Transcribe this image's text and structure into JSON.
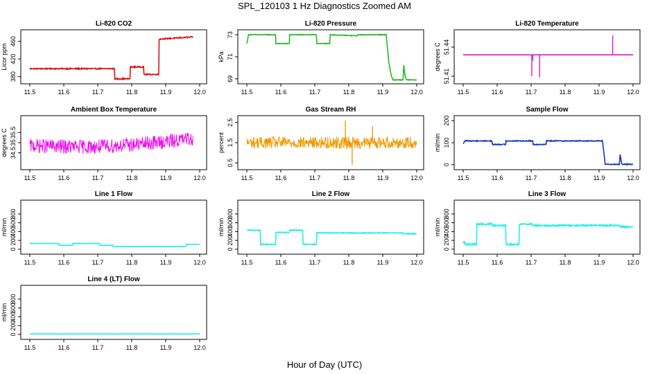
{
  "page": {
    "title": "SPL_120103  1 Hz Diagnostics Zoomed AM",
    "xlabel": "Hour of Day (UTC)"
  },
  "chart_data": [
    {
      "id": "co2",
      "type": "line",
      "title": "Li-820 CO2",
      "ylabel": "Licor ppm",
      "color": "#dd1111",
      "xlim": [
        11.5,
        12.0
      ],
      "xticks": [
        11.5,
        11.6,
        11.7,
        11.8,
        11.9,
        12.0
      ],
      "ylim": [
        370,
        480
      ],
      "yticks": [
        380,
        420,
        460
      ],
      "series": [
        {
          "name": "CO2",
          "noise": 1.2,
          "x": [
            11.5,
            11.75,
            11.75,
            11.795,
            11.795,
            11.835,
            11.835,
            11.88,
            11.88,
            11.98,
            11.98
          ],
          "y": [
            398,
            398,
            375,
            375,
            402,
            402,
            385,
            385,
            465,
            470,
            470
          ]
        }
      ],
      "spikes": []
    },
    {
      "id": "pressure",
      "type": "line",
      "title": "Li-820 Pressure",
      "ylabel": "kPa",
      "color": "#22bb22",
      "xlim": [
        11.5,
        12.0
      ],
      "xticks": [
        11.5,
        11.6,
        11.7,
        11.8,
        11.9,
        12.0
      ],
      "ylim": [
        68.8,
        73.2
      ],
      "yticks": [
        69,
        71,
        73
      ],
      "series": [
        {
          "name": "Pressure",
          "noise": 0.03,
          "x": [
            11.5,
            11.505,
            11.585,
            11.585,
            11.625,
            11.625,
            11.705,
            11.705,
            11.745,
            11.745,
            11.825,
            11.825,
            11.91,
            11.918,
            11.925,
            11.93,
            11.96,
            11.962,
            11.966,
            11.97,
            12.0
          ],
          "y": [
            72.2,
            73.0,
            73.0,
            72.2,
            72.2,
            73.0,
            73.0,
            72.2,
            72.2,
            73.0,
            72.9,
            73.0,
            73.0,
            70.5,
            69.3,
            68.9,
            68.9,
            70.3,
            69.2,
            68.9,
            68.9
          ]
        }
      ],
      "spikes": []
    },
    {
      "id": "temperature",
      "type": "line",
      "title": "Li-820 Temperature",
      "ylabel": "degrees C",
      "color": "#dd11dd",
      "xlim": [
        11.5,
        12.0
      ],
      "xticks": [
        11.5,
        11.6,
        11.7,
        11.8,
        11.9,
        12.0
      ],
      "ylim": [
        51.405,
        51.455
      ],
      "yticks": [
        51.41,
        51.44
      ],
      "series": [
        {
          "name": "Temperature",
          "noise": 0,
          "x": [
            11.5,
            12.0
          ],
          "y": [
            51.432,
            51.432
          ]
        }
      ],
      "spikes": [
        {
          "x": 11.702,
          "y": 51.41
        },
        {
          "x": 11.705,
          "y": 51.426
        },
        {
          "x": 11.725,
          "y": 51.409
        },
        {
          "x": 11.94,
          "y": 51.452
        }
      ]
    },
    {
      "id": "ambient",
      "type": "line",
      "title": "Ambient Box Temperature",
      "ylabel": "degrees C",
      "color": "#ee11ee",
      "xlim": [
        11.5,
        12.0
      ],
      "xticks": [
        11.5,
        11.6,
        11.7,
        11.8,
        11.9,
        12.0
      ],
      "ylim": [
        33.8,
        36.2
      ],
      "yticks": [
        34.5,
        35,
        35.5
      ],
      "series": [
        {
          "name": "Ambient",
          "noise": 0.35,
          "x": [
            11.5,
            11.6,
            11.7,
            11.8,
            11.9,
            11.98
          ],
          "y": [
            34.85,
            34.8,
            34.8,
            34.9,
            35.05,
            35.2
          ]
        }
      ],
      "spikes": []
    },
    {
      "id": "rh",
      "type": "line",
      "title": "Gas Stream RH",
      "ylabel": "percent",
      "color": "#ee9900",
      "xlim": [
        11.5,
        12.0
      ],
      "xticks": [
        11.5,
        11.6,
        11.7,
        11.8,
        11.9,
        12.0
      ],
      "ylim": [
        0.3,
        2.7
      ],
      "yticks": [
        0.5,
        1.5,
        2.5
      ],
      "series": [
        {
          "name": "RH",
          "noise": 0.3,
          "x": [
            11.5,
            12.0
          ],
          "y": [
            1.5,
            1.5
          ]
        }
      ],
      "spikes": [
        {
          "x": 11.79,
          "y": 2.6
        },
        {
          "x": 11.81,
          "y": 0.4
        },
        {
          "x": 11.87,
          "y": 2.3
        }
      ]
    },
    {
      "id": "sampleflow",
      "type": "line",
      "title": "Sample Flow",
      "ylabel": "ml/min",
      "color": "#1133cc",
      "xlim": [
        11.5,
        12.0
      ],
      "xticks": [
        11.5,
        11.6,
        11.7,
        11.8,
        11.9,
        12.0
      ],
      "ylim": [
        -10,
        210
      ],
      "yticks": [
        0,
        100,
        200
      ],
      "series": [
        {
          "name": "Sample Flow",
          "noise": 2,
          "x": [
            11.5,
            11.505,
            11.585,
            11.585,
            11.625,
            11.625,
            11.705,
            11.705,
            11.745,
            11.745,
            11.91,
            11.918,
            11.96,
            11.962,
            11.966,
            11.97,
            12.0
          ],
          "y": [
            95,
            108,
            108,
            92,
            92,
            108,
            108,
            92,
            92,
            108,
            108,
            2,
            2,
            50,
            5,
            2,
            2
          ]
        }
      ],
      "spikes": []
    },
    {
      "id": "line1",
      "type": "line",
      "title": "Line 1 Flow",
      "ylabel": "ml/min",
      "color": "#22eeee",
      "xlim": [
        11.5,
        12.0
      ],
      "xticks": [
        11.5,
        11.6,
        11.7,
        11.8,
        11.9,
        12.0
      ],
      "ylim": [
        -50,
        1050
      ],
      "yticks": [
        0,
        200,
        400,
        600,
        800
      ],
      "series": [
        {
          "name": "Line 1",
          "noise": 4,
          "x": [
            11.5,
            11.585,
            11.585,
            11.625,
            11.625,
            11.705,
            11.705,
            11.745,
            11.745,
            11.96,
            11.96,
            12.0
          ],
          "y": [
            130,
            130,
            90,
            90,
            130,
            130,
            90,
            90,
            60,
            60,
            110,
            110
          ]
        }
      ],
      "spikes": []
    },
    {
      "id": "line2",
      "type": "line",
      "title": "Line 2 Flow",
      "ylabel": "ml/min",
      "color": "#22eeee",
      "xlim": [
        11.5,
        12.0
      ],
      "xticks": [
        11.5,
        11.6,
        11.7,
        11.8,
        11.9,
        12.0
      ],
      "ylim": [
        -50,
        1050
      ],
      "yticks": [
        0,
        200,
        400,
        600,
        800
      ],
      "series": [
        {
          "name": "Line 2",
          "noise": 10,
          "x": [
            11.5,
            11.54,
            11.54,
            11.585,
            11.585,
            11.625,
            11.625,
            11.665,
            11.665,
            11.705,
            11.705,
            11.96,
            11.96,
            12.0
          ],
          "y": [
            430,
            430,
            110,
            110,
            380,
            380,
            430,
            430,
            110,
            110,
            370,
            370,
            350,
            350
          ]
        }
      ],
      "spikes": []
    },
    {
      "id": "line3",
      "type": "line",
      "title": "Line 3 Flow",
      "ylabel": "ml/min",
      "color": "#22eeee",
      "xlim": [
        11.5,
        12.0
      ],
      "xticks": [
        11.5,
        11.6,
        11.7,
        11.8,
        11.9,
        12.0
      ],
      "ylim": [
        -50,
        1050
      ],
      "yticks": [
        0,
        200,
        400,
        600,
        800
      ],
      "series": [
        {
          "name": "Line 3",
          "noise": 18,
          "x": [
            11.5,
            11.505,
            11.505,
            11.54,
            11.54,
            11.585,
            11.585,
            11.625,
            11.625,
            11.665,
            11.665,
            11.705,
            11.705,
            11.96,
            11.96,
            12.0
          ],
          "y": [
            160,
            160,
            110,
            110,
            570,
            570,
            540,
            540,
            110,
            110,
            570,
            570,
            540,
            540,
            510,
            510
          ]
        }
      ],
      "spikes": []
    },
    {
      "id": "line4",
      "type": "line",
      "title": "Line 4 (LT) Flow",
      "ylabel": "ml/min",
      "color": "#22eeee",
      "xlim": [
        11.5,
        12.0
      ],
      "xticks": [
        11.5,
        11.6,
        11.7,
        11.8,
        11.9,
        12.0
      ],
      "ylim": [
        -50,
        1050
      ],
      "yticks": [
        0,
        200,
        400,
        600,
        800
      ],
      "series": [
        {
          "name": "Line 4",
          "noise": 2,
          "x": [
            11.5,
            12.0
          ],
          "y": [
            10,
            10
          ]
        }
      ],
      "spikes": []
    }
  ]
}
